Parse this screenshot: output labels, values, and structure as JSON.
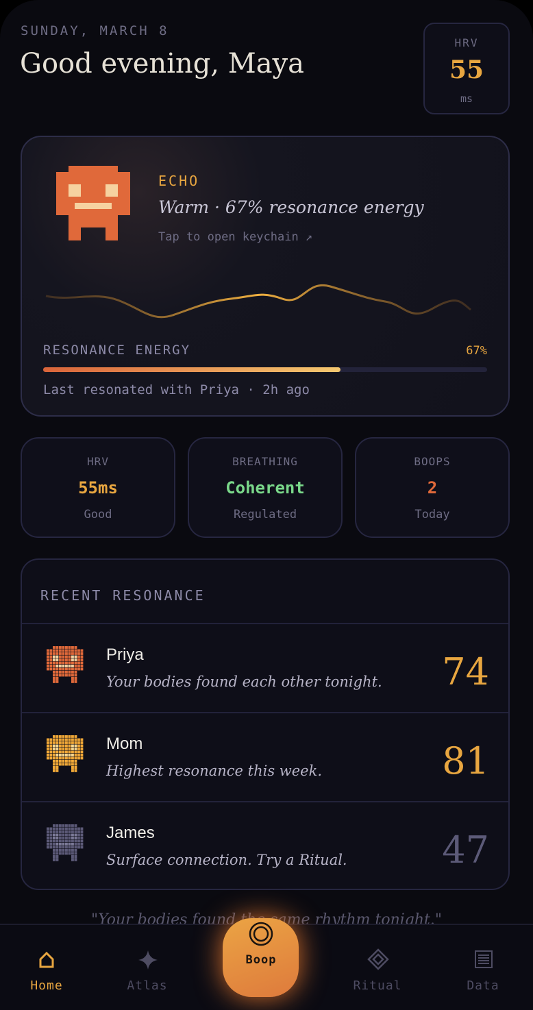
{
  "header": {
    "date": "SUNDAY, MARCH 8",
    "greeting": "Good evening, Maya",
    "hrv_badge": {
      "label": "HRV",
      "value": "55",
      "unit": "ms"
    }
  },
  "echo": {
    "name": "ECHO",
    "status": "Warm · 67% resonance energy",
    "link": "Tap to open keychain ↗",
    "energy_title": "RESONANCE ENERGY",
    "energy": 67,
    "energy_label": "67%",
    "last": "Last resonated with Priya · 2h ago"
  },
  "stats": [
    {
      "label": "HRV",
      "value": "55ms",
      "note": "Good"
    },
    {
      "label": "BREATHING",
      "value": "Coherent",
      "note": "Regulated"
    },
    {
      "label": "BOOPS",
      "value": "2",
      "note": "Today"
    }
  ],
  "recent": {
    "title": "RECENT RESONANCE",
    "rows": [
      {
        "name": "Priya",
        "message": "Your bodies found each other tonight.",
        "score": "74"
      },
      {
        "name": "Mom",
        "message": "Highest resonance this week.",
        "score": "81"
      },
      {
        "name": "James",
        "message": "Surface connection. Try a Ritual.",
        "score": "47"
      }
    ]
  },
  "quote": "\"Your bodies found the same rhythm tonight.\"",
  "nav": [
    "Home",
    "Atlas",
    "Boop",
    "Ritual",
    "Data"
  ]
}
